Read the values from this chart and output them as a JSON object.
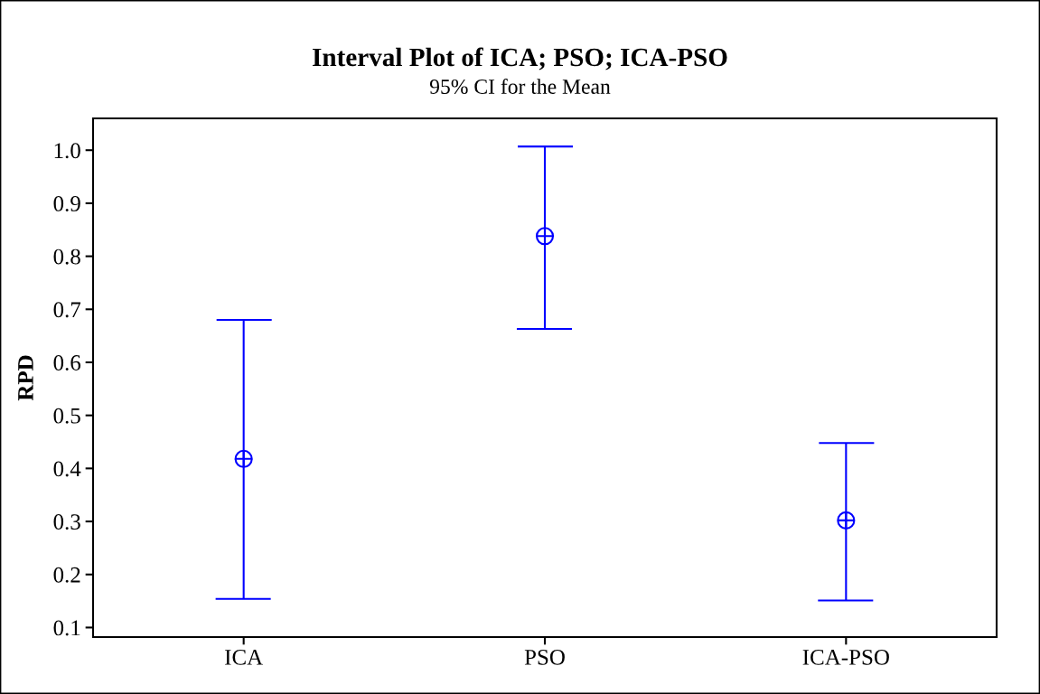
{
  "chart_data": {
    "type": "scatter",
    "title": "Interval Plot of ICA; PSO; ICA-PSO",
    "subtitle": "95% CI for the Mean",
    "ylabel": "RPD",
    "categories": [
      "ICA",
      "PSO",
      "ICA-PSO"
    ],
    "values": [
      0.418,
      0.838,
      0.302
    ],
    "errors": [
      [
        0.154,
        0.68
      ],
      [
        0.663,
        1.007
      ],
      [
        0.151,
        0.448
      ]
    ],
    "color": "#0000ff",
    "marker": "circle",
    "ylim": [
      0.082,
      1.06
    ],
    "yticks": [
      {
        "value": 0.1,
        "label": "0.1"
      },
      {
        "value": 0.2,
        "label": "0.2"
      },
      {
        "value": 0.3,
        "label": "0.3"
      },
      {
        "value": 0.4,
        "label": "0.4"
      },
      {
        "value": 0.5,
        "label": "0.5"
      },
      {
        "value": 0.6,
        "label": "0.6"
      },
      {
        "value": 0.7,
        "label": "0.7"
      },
      {
        "value": 0.8,
        "label": "0.8"
      },
      {
        "value": 0.9,
        "label": "0.9"
      },
      {
        "value": 1.0,
        "label": "1.0"
      }
    ],
    "grid": false
  }
}
